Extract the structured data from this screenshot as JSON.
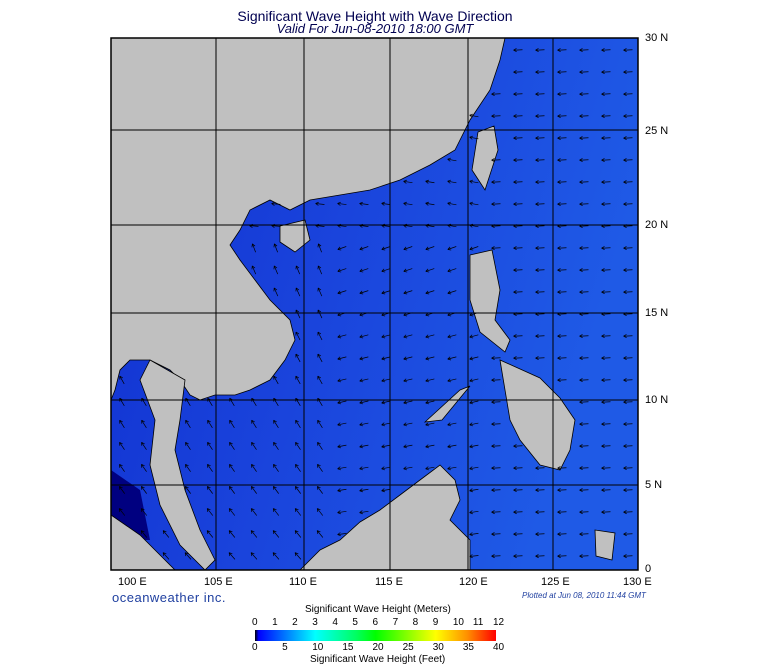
{
  "title": "Significant Wave Height with Wave Direction",
  "subtitle": "Valid For Jun-08-2010 18:00 GMT",
  "map": {
    "lon_range": [
      100,
      130
    ],
    "lat_range": [
      0,
      30
    ],
    "lon_labels": [
      "100 E",
      "105 E",
      "110 E",
      "115 E",
      "120 E",
      "125 E",
      "130 E"
    ],
    "lat_labels": [
      "30 N",
      "25 N",
      "20 N",
      "15 N",
      "10 N",
      "5 N",
      "0"
    ],
    "land_color": "#c0c0c0",
    "ocean_color": "#1a3fd8",
    "grid": true,
    "arrows": "wave direction"
  },
  "brand": "oceanweather inc.",
  "plotted": "Plotted at Jun 08, 2010 11:44 GMT",
  "colorbar": {
    "title_top": "Significant Wave Height (Meters)",
    "title_bottom": "Significant Wave Height (Feet)",
    "meters": [
      "0",
      "1",
      "2",
      "3",
      "4",
      "5",
      "6",
      "7",
      "8",
      "9",
      "10",
      "11",
      "12"
    ],
    "feet": [
      "0",
      "5",
      "10",
      "15",
      "20",
      "25",
      "30",
      "35",
      "40"
    ],
    "colors": [
      "#000000",
      "#0000ff",
      "#0090ff",
      "#00ffff",
      "#00ff80",
      "#00ff00",
      "#b0ff00",
      "#ffff00",
      "#ffa000",
      "#ff0000"
    ]
  }
}
